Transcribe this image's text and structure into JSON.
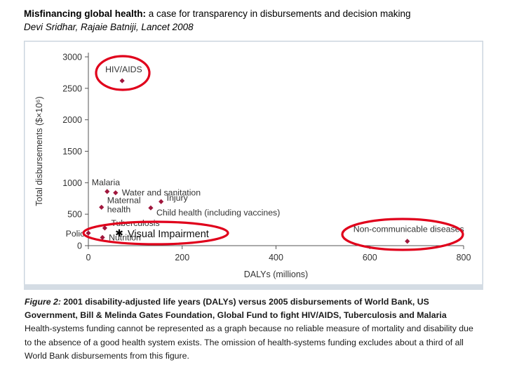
{
  "header": {
    "title_bold": "Misfinancing global health:",
    "title_rest": " a case for transparency in disbursements and decision making",
    "authors": "Devi Sridhar, Rajaie Batniji, Lancet 2008"
  },
  "chart_data": {
    "type": "scatter",
    "xlabel": "DALYs (millions)",
    "ylabel": "Total disbursements ($×10⁶)",
    "xlim": [
      0,
      800
    ],
    "ylim": [
      0,
      3000
    ],
    "xticks": [
      0,
      200,
      400,
      600,
      800
    ],
    "yticks": [
      0,
      500,
      1000,
      1500,
      2000,
      2500,
      3000
    ],
    "marker_color": "#a0163c",
    "points": [
      {
        "label": "HIV/AIDS",
        "x": 72,
        "y": 2620
      },
      {
        "label": "Malaria",
        "x": 40,
        "y": 860
      },
      {
        "label": "Water and sanitation",
        "x": 58,
        "y": 840
      },
      {
        "label": "Injury",
        "x": 155,
        "y": 700
      },
      {
        "label": "Maternal health",
        "x": 28,
        "y": 610
      },
      {
        "label": "Child health (including vaccines)",
        "x": 133,
        "y": 600
      },
      {
        "label": "Tuberculosis",
        "x": 35,
        "y": 280
      },
      {
        "label": "Polio",
        "x": 0,
        "y": 200
      },
      {
        "label": "Nutrition",
        "x": 30,
        "y": 130
      },
      {
        "label": "Non-communicable diseases",
        "x": 680,
        "y": 70
      }
    ],
    "annotation": "Visual Impairment",
    "highlight_color": "#e0001b"
  },
  "caption": {
    "figure_label": "Figure 2:",
    "title_part1": " 2001 disability-adjusted life years (DALYs) versus 2005 disbursements of World Bank, US Government, Bill & Melinda Gates Foundation, Global Fund to fight HIV/AIDS, Tuberculosis and Malaria",
    "body": "Health-systems funding cannot be represented as a graph because no reliable measure of mortality and disability due to the absence of a good health system exists. The omission of health-systems funding excludes about a third of all World Bank disbursements from this figure."
  }
}
